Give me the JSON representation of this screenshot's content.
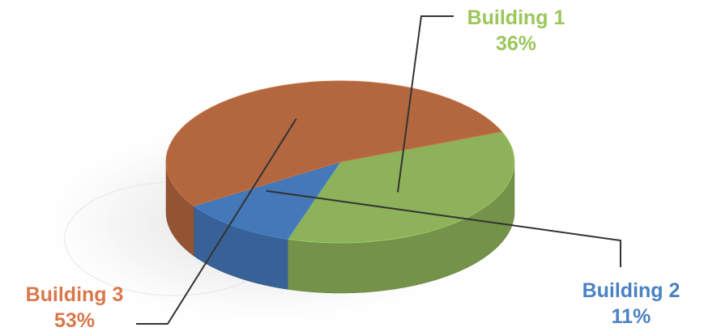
{
  "chart_data": {
    "type": "pie",
    "title": "",
    "three_d": true,
    "series": [
      {
        "name": "Building 1",
        "value": 36,
        "value_label": "36%",
        "color": "#8db259",
        "label_color": "#9bc65a"
      },
      {
        "name": "Building 2",
        "value": 11,
        "value_label": "11%",
        "color": "#4478b8",
        "label_color": "#4a82c3"
      },
      {
        "name": "Building 3",
        "value": 53,
        "value_label": "53%",
        "color": "#b3673f",
        "label_color": "#d9784a"
      }
    ],
    "legend": "none",
    "labels": "leader-lines"
  }
}
